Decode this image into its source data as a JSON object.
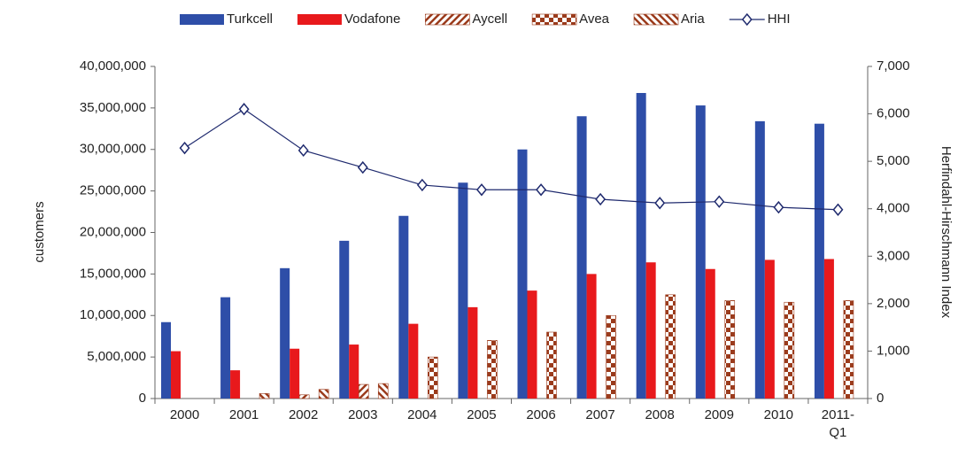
{
  "chart_data": {
    "type": "bar",
    "y_label": "customers",
    "y2_label": "Herfindahl-Hirschmann Index",
    "categories": [
      "2000",
      "2001",
      "2002",
      "2003",
      "2004",
      "2005",
      "2006",
      "2007",
      "2008",
      "2009",
      "2010",
      "2011-\nQ1"
    ],
    "series": [
      {
        "name": "Turkcell",
        "color": "#2e4ea8",
        "values": [
          9200000,
          12200000,
          15700000,
          19000000,
          22000000,
          26000000,
          30000000,
          34000000,
          36800000,
          35300000,
          33400000,
          33100000
        ]
      },
      {
        "name": "Vodafone",
        "color": "#e8191c",
        "values": [
          5700000,
          3400000,
          6000000,
          6500000,
          9000000,
          11000000,
          13000000,
          15000000,
          16400000,
          15600000,
          16700000,
          16800000
        ]
      },
      {
        "name": "Aycell",
        "color": "#9b3b1c",
        "pattern": "diagonal",
        "values": [
          null,
          null,
          450000,
          1700000,
          null,
          null,
          null,
          null,
          null,
          null,
          null,
          null
        ]
      },
      {
        "name": "Avea",
        "color": "#9b3b1c",
        "pattern": "checker",
        "values": [
          null,
          null,
          null,
          null,
          5000000,
          7000000,
          8000000,
          10000000,
          12500000,
          11800000,
          11600000,
          11800000
        ]
      },
      {
        "name": "Aria",
        "color": "#9b3b1c",
        "pattern": "antidiagonal",
        "values": [
          null,
          600000,
          1100000,
          1800000,
          null,
          null,
          null,
          null,
          null,
          null,
          null,
          null
        ]
      },
      {
        "name": "HHI",
        "type": "line",
        "axis": "y2",
        "color": "#1f2a6e",
        "values": [
          5280,
          6100,
          5230,
          4870,
          4500,
          4400,
          4400,
          4200,
          4120,
          4150,
          4030,
          3980
        ]
      }
    ],
    "ylim": [
      0,
      40000000
    ],
    "yticks": [
      0,
      {
        "value": 5000000,
        "label": "5,000,000"
      },
      {
        "value": 10000000,
        "label": "10,000,000"
      },
      {
        "value": 15000000,
        "label": "15,000,000"
      },
      {
        "value": 20000000,
        "label": "20,000,000"
      },
      {
        "value": 25000000,
        "label": "25,000,000"
      },
      {
        "value": 30000000,
        "label": "30,000,000"
      },
      {
        "value": 35000000,
        "label": "35,000,000"
      },
      {
        "value": 40000000,
        "label": "40,000,000"
      }
    ],
    "y2lim": [
      0,
      7000
    ],
    "y2ticks": [
      0,
      {
        "value": 1000,
        "label": "1,000"
      },
      {
        "value": 2000,
        "label": "2,000"
      },
      {
        "value": 3000,
        "label": "3,000"
      },
      {
        "value": 4000,
        "label": "4,000"
      },
      {
        "value": 5000,
        "label": "5,000"
      },
      {
        "value": 6000,
        "label": "6,000"
      },
      {
        "value": 7000,
        "label": "7,000"
      }
    ],
    "legend": "top",
    "grid": false
  }
}
